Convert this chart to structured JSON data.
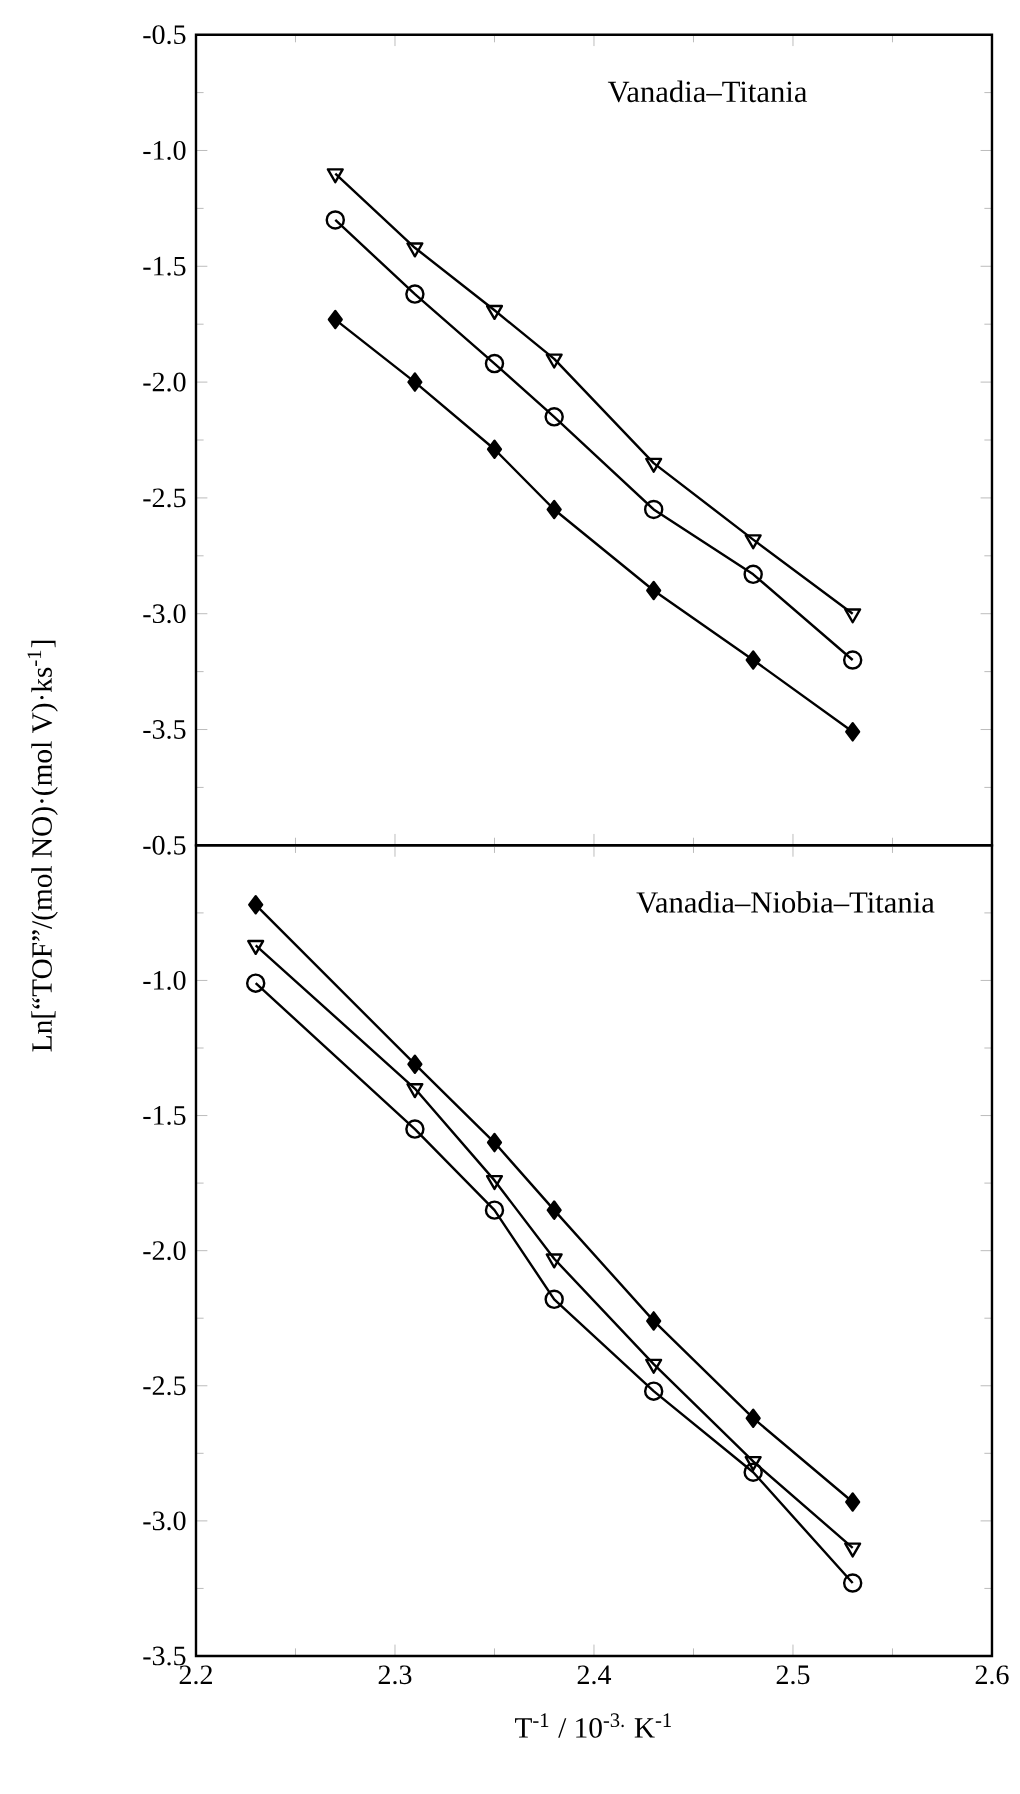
{
  "chart_data": [
    {
      "type": "line",
      "ylabel": "Ln[“TOF”/(mol NO)·(mol V)·ks$^{-1}$]",
      "annotations": [
        "Vanadia–Titania"
      ],
      "x": [
        2.27,
        2.31,
        2.35,
        2.38,
        2.43,
        2.48,
        2.53
      ],
      "xlim": [
        2.2,
        2.6
      ],
      "xticks": [
        2.2,
        2.3,
        2.4,
        2.5,
        2.6
      ],
      "ylim": [
        -4.0,
        -0.5
      ],
      "yticks": [
        -0.5,
        {
          "value": -1.0,
          "label": "-1.0"
        },
        -1.5,
        {
          "value": -2.0,
          "label": "-2.0"
        },
        -2.5,
        {
          "value": -3.0,
          "label": "-3.0"
        },
        -3.5,
        {
          "value": -4.0,
          "label": null
        }
      ],
      "tick_labels": "y",
      "series": [
        {
          "color": "#000000",
          "marker": "triangle",
          "values": [
            -1.1,
            -1.42,
            -1.69,
            -1.9,
            -2.35,
            -2.68,
            -3.0
          ]
        },
        {
          "color": "#000000",
          "marker": "circle",
          "values": [
            -1.3,
            -1.62,
            -1.92,
            -2.15,
            -2.55,
            -2.83,
            -3.2
          ]
        },
        {
          "color": "#000000",
          "marker": "diamond",
          "values": [
            -1.73,
            -2.0,
            -2.29,
            -2.55,
            -2.9,
            -3.2,
            -3.51
          ]
        }
      ]
    },
    {
      "type": "line",
      "xlabel": "T$^{-1}$ / 10$^{-3.}$ K$^{-1}$",
      "annotations": [
        "Vanadia–Niobia–Titania"
      ],
      "x": [
        2.23,
        2.31,
        2.35,
        2.38,
        2.43,
        2.48,
        2.53
      ],
      "xlim": [
        2.2,
        2.6
      ],
      "xticks": [
        2.2,
        2.3,
        2.4,
        2.5,
        2.6
      ],
      "ylim": [
        -3.5,
        -0.5
      ],
      "yticks": [
        -0.5,
        {
          "value": -1.0,
          "label": "-1.0"
        },
        -1.5,
        {
          "value": -2.0,
          "label": "-2.0"
        },
        -2.5,
        {
          "value": -3.0,
          "label": "-3.0"
        },
        -3.5
      ],
      "series": [
        {
          "color": "#000000",
          "marker": "diamond",
          "values": [
            -0.72,
            -1.31,
            -1.6,
            -1.85,
            -2.26,
            -2.62,
            -2.93
          ]
        },
        {
          "color": "#000000",
          "marker": "triangle",
          "values": [
            -0.87,
            -1.4,
            -1.74,
            -2.03,
            -2.42,
            -2.78,
            -3.1
          ]
        },
        {
          "color": "#000000",
          "marker": "circle",
          "values": [
            -1.01,
            -1.55,
            -1.85,
            -2.18,
            -2.52,
            -2.82,
            -3.23
          ]
        }
      ]
    }
  ]
}
